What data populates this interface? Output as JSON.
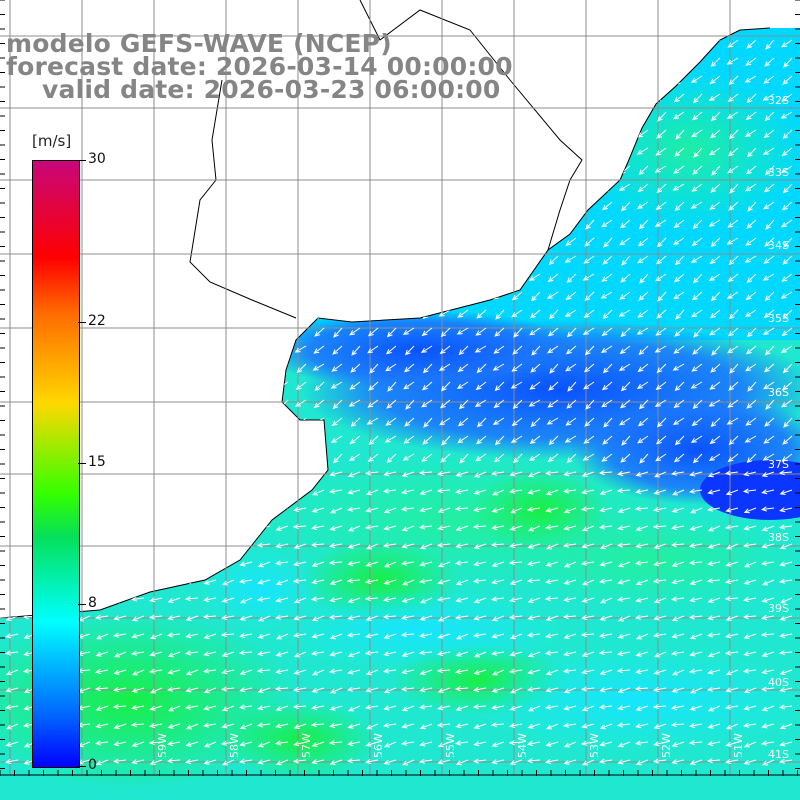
{
  "header": {
    "line1": "modelo GEFS-WAVE (NCEP)",
    "line2": "forecast date: 2026-03-14 00:00:00",
    "line3": "valid date: 2026-03-23 06:00:00"
  },
  "colorbar": {
    "units": "[m/s]",
    "ticks": [
      {
        "label": "30",
        "value": 30
      },
      {
        "label": "22",
        "value": 22
      },
      {
        "label": "15",
        "value": 15
      },
      {
        "label": "8",
        "value": 8
      },
      {
        "label": "0",
        "value": 0
      }
    ]
  },
  "map": {
    "lat_labels": [
      "32S",
      "33S",
      "34S",
      "35S",
      "36S",
      "37S",
      "38S",
      "39S",
      "40S",
      "41S"
    ],
    "lon_labels": [
      "59W",
      "58W",
      "57W",
      "56W",
      "55W",
      "54W",
      "53W",
      "52W",
      "51W"
    ],
    "wind_direction": "arrows point toward the southwest / west",
    "colors": {
      "land": "#ffffff",
      "coast": "#000000",
      "grid": "#8c8c8c",
      "arrow": "#ffffff"
    }
  }
}
